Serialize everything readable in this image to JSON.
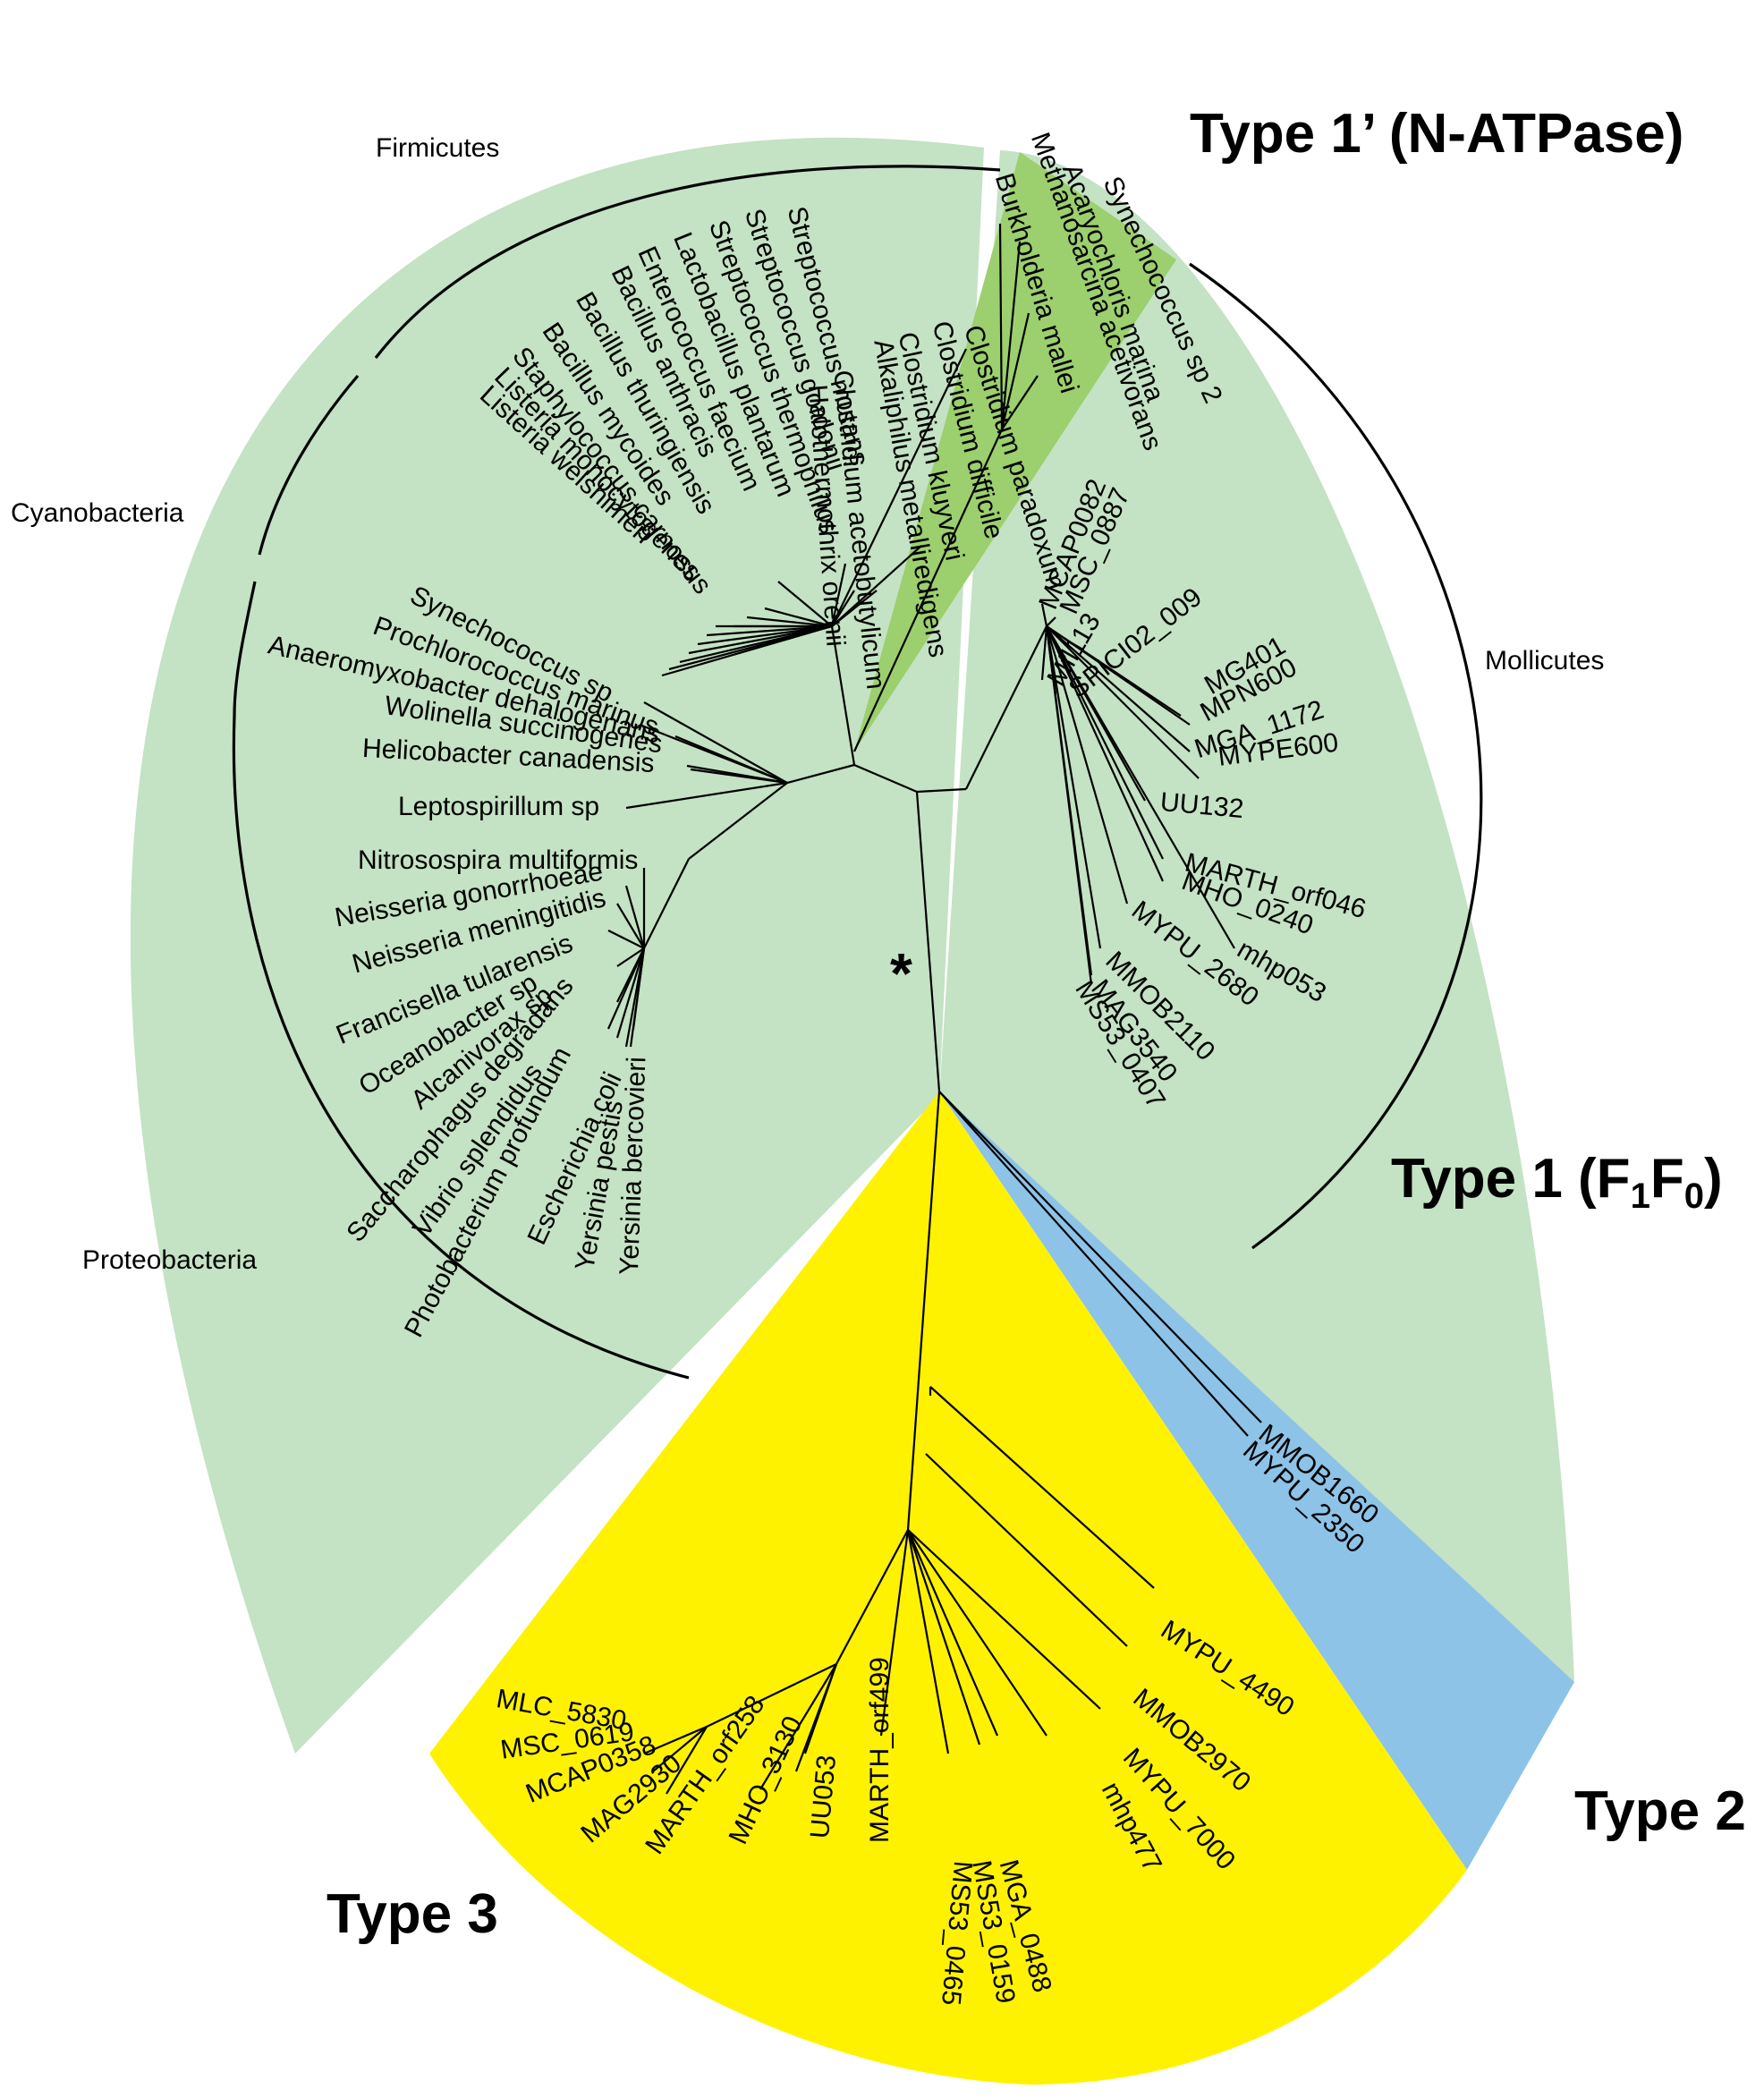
{
  "colors": {
    "type1": "#c4e2c4",
    "type1prime": "#9ccf6e",
    "type2": "#8ec3e8",
    "type3": "#fff200"
  },
  "titles": {
    "type1prime": "Type 1’ (N-ATPase)",
    "type1_main": "Type 1 (F",
    "type1_sub1": "1",
    "type1_mid": "F",
    "type1_sub0": "0",
    "type1_end": ")",
    "type2": "Type 2",
    "type3": "Type 3"
  },
  "groups": {
    "firmicutes": "Firmicutes",
    "cyanobacteria": "Cyanobacteria",
    "proteobacteria": "Proteobacteria",
    "mollicutes": "Mollicutes"
  },
  "root_marker": "*",
  "leaves": {
    "n_atpase": [
      "Burkholderia mallei",
      "Methanosarcina acetivorans",
      "Acaryochloris marina",
      "Synechococcus sp 2"
    ],
    "firmicutes": [
      "Clostridium paradoxum",
      "Clostridium difficile",
      "Clostridium kluyveri",
      "Alkaliphilus metalliredigens",
      "Clostridium acetobutylicum",
      "Halothermothrix orenii",
      "Streptococcus mutans",
      "Streptococcus gordonii",
      "Streptococcus thermophilus",
      "Lactobacillus plantarum",
      "Enterococcus faecium",
      "Bacillus anthracis",
      "Bacillus thuringiensis",
      "Bacillus mycoides",
      "Staphylococcus carnosus",
      "Listeria monocytogenes",
      "Listeria welshimeri"
    ],
    "cyanobacteria": [
      "Synechococcus sp",
      "Prochlorococcus marinus",
      "Anaeromyxobacter dehalogenans",
      "Wolinella succinogenes",
      "Helicobacter canadensis",
      "Leptospirillum sp"
    ],
    "proteobacteria": [
      "Nitrosospira multiformis",
      "Neisseria gonorrhoeae",
      "Neisseria meningitidis",
      "Francisella tularensis",
      "Oceanobacter sp",
      "Alcanivorax sp",
      "Saccharophagus degradans",
      "Vibrio splendidus",
      "Photobacterium profundum",
      "Escherichia coli",
      "Yersinia pestis",
      "Yersinia bercovieri"
    ],
    "mollicutes_type1": [
      "MCAP0082",
      "MSC_0887",
      "Mfl113",
      "SPICI02_009",
      "MG401",
      "MPN600",
      "MGA_1172",
      "MYPE600",
      "UU132",
      "MARTH_orf046",
      "MHO_0240",
      "mhp053",
      "MYPU_2680",
      "MMOB2110",
      "MAG3540",
      "MS53_0407"
    ],
    "type2": [
      "MMOB1660",
      "MYPU_2350"
    ],
    "type3": [
      "MLC_5830",
      "MSC_0619",
      "MCAP0358",
      "MAG2930",
      "MARTH_orf258",
      "MHO_3130",
      "UU053",
      "MARTH_orf499",
      "MS53_0465",
      "MS53_0159",
      "MGA_0488",
      "mhp477",
      "MYPU_7000",
      "MMOB2970",
      "MYPU_4490"
    ]
  }
}
